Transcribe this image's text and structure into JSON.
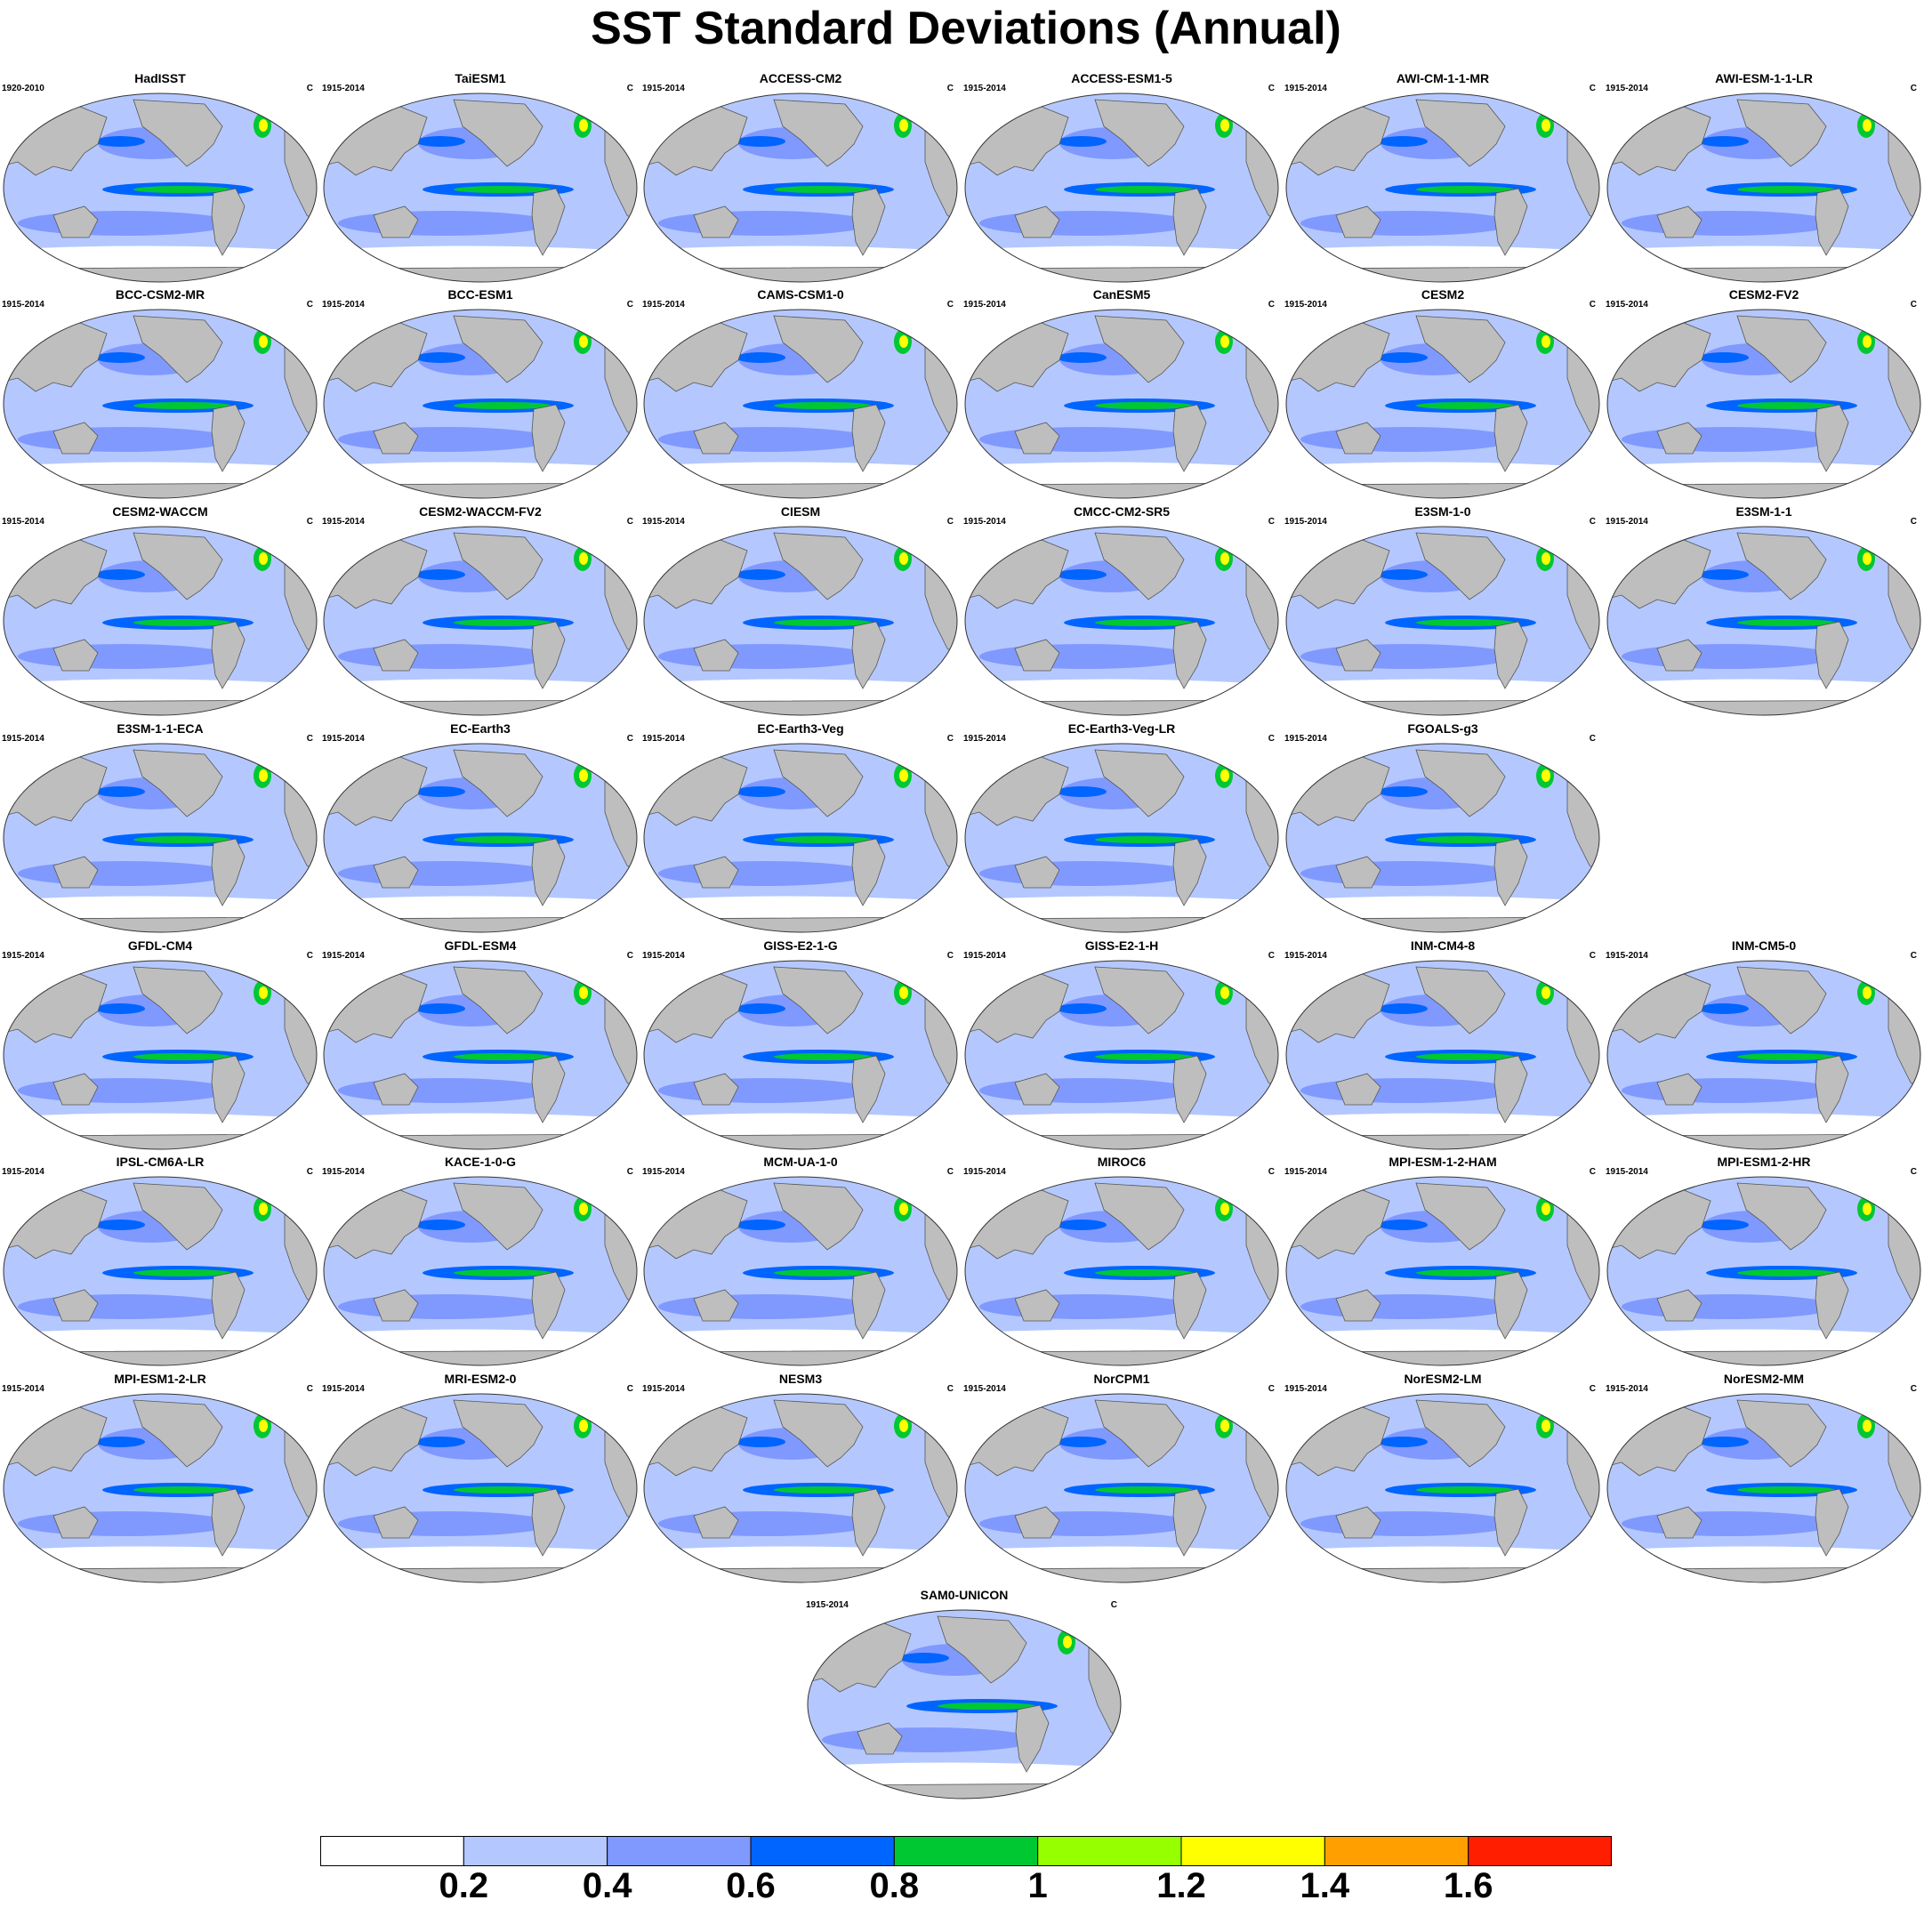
{
  "title": "SST Standard Deviations (Annual)",
  "units": "C",
  "panels": [
    {
      "name": "HadISST",
      "period": "1920-2010"
    },
    {
      "name": "TaiESM1",
      "period": "1915-2014"
    },
    {
      "name": "ACCESS-CM2",
      "period": "1915-2014"
    },
    {
      "name": "ACCESS-ESM1-5",
      "period": "1915-2014"
    },
    {
      "name": "AWI-CM-1-1-MR",
      "period": "1915-2014"
    },
    {
      "name": "AWI-ESM-1-1-LR",
      "period": "1915-2014"
    },
    {
      "name": "BCC-CSM2-MR",
      "period": "1915-2014"
    },
    {
      "name": "BCC-ESM1",
      "period": "1915-2014"
    },
    {
      "name": "CAMS-CSM1-0",
      "period": "1915-2014"
    },
    {
      "name": "CanESM5",
      "period": "1915-2014"
    },
    {
      "name": "CESM2",
      "period": "1915-2014"
    },
    {
      "name": "CESM2-FV2",
      "period": "1915-2014"
    },
    {
      "name": "CESM2-WACCM",
      "period": "1915-2014"
    },
    {
      "name": "CESM2-WACCM-FV2",
      "period": "1915-2014"
    },
    {
      "name": "CIESM",
      "period": "1915-2014"
    },
    {
      "name": "CMCC-CM2-SR5",
      "period": "1915-2014"
    },
    {
      "name": "E3SM-1-0",
      "period": "1915-2014"
    },
    {
      "name": "E3SM-1-1",
      "period": "1915-2014"
    },
    {
      "name": "E3SM-1-1-ECA",
      "period": "1915-2014"
    },
    {
      "name": "EC-Earth3",
      "period": "1915-2014"
    },
    {
      "name": "EC-Earth3-Veg",
      "period": "1915-2014"
    },
    {
      "name": "EC-Earth3-Veg-LR",
      "period": "1915-2014"
    },
    {
      "name": "FGOALS-g3",
      "period": "1915-2014"
    },
    {
      "name": "GFDL-CM4",
      "period": "1915-2014"
    },
    {
      "name": "GFDL-ESM4",
      "period": "1915-2014"
    },
    {
      "name": "GISS-E2-1-G",
      "period": "1915-2014"
    },
    {
      "name": "GISS-E2-1-H",
      "period": "1915-2014"
    },
    {
      "name": "INM-CM4-8",
      "period": "1915-2014"
    },
    {
      "name": "INM-CM5-0",
      "period": "1915-2014"
    },
    {
      "name": "IPSL-CM6A-LR",
      "period": "1915-2014"
    },
    {
      "name": "KACE-1-0-G",
      "period": "1915-2014"
    },
    {
      "name": "MCM-UA-1-0",
      "period": "1915-2014"
    },
    {
      "name": "MIROC6",
      "period": "1915-2014"
    },
    {
      "name": "MPI-ESM-1-2-HAM",
      "period": "1915-2014"
    },
    {
      "name": "MPI-ESM1-2-HR",
      "period": "1915-2014"
    },
    {
      "name": "MPI-ESM1-2-LR",
      "period": "1915-2014"
    },
    {
      "name": "MRI-ESM2-0",
      "period": "1915-2014"
    },
    {
      "name": "NESM3",
      "period": "1915-2014"
    },
    {
      "name": "NorCPM1",
      "period": "1915-2014"
    },
    {
      "name": "NorESM2-LM",
      "period": "1915-2014"
    },
    {
      "name": "NorESM2-MM",
      "period": "1915-2014"
    },
    {
      "name": "SAM0-UNICON",
      "period": "1915-2014"
    }
  ],
  "colorbar": {
    "colors": [
      "#ffffff",
      "#b4c8ff",
      "#8099ff",
      "#0064ff",
      "#00c832",
      "#96ff00",
      "#ffff00",
      "#ffa000",
      "#ff1e00"
    ],
    "labels": [
      "0.2",
      "0.4",
      "0.6",
      "0.8",
      "1",
      "1.2",
      "1.4",
      "1.6"
    ]
  }
}
